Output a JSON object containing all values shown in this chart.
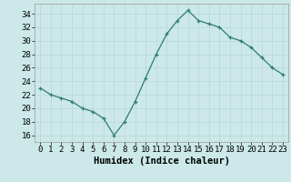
{
  "x": [
    0,
    1,
    2,
    3,
    4,
    5,
    6,
    7,
    8,
    9,
    10,
    11,
    12,
    13,
    14,
    15,
    16,
    17,
    18,
    19,
    20,
    21,
    22,
    23
  ],
  "y": [
    23,
    22,
    21.5,
    21,
    20,
    19.5,
    18.5,
    16,
    18,
    21,
    24.5,
    28,
    31,
    33,
    34.5,
    33,
    32.5,
    32,
    30.5,
    30,
    29,
    27.5,
    26,
    25
  ],
  "line_color": "#2e7d6e",
  "marker_color": "#2e7d6e",
  "bg_color": "#cce8e8",
  "grid_color": "#b8d8d8",
  "xlabel": "Humidex (Indice chaleur)",
  "ylim": [
    15,
    35.5
  ],
  "xlim": [
    -0.5,
    23.5
  ],
  "yticks": [
    16,
    18,
    20,
    22,
    24,
    26,
    28,
    30,
    32,
    34
  ],
  "xticks": [
    0,
    1,
    2,
    3,
    4,
    5,
    6,
    7,
    8,
    9,
    10,
    11,
    12,
    13,
    14,
    15,
    16,
    17,
    18,
    19,
    20,
    21,
    22,
    23
  ],
  "tick_label_fontsize": 6.5,
  "xlabel_fontsize": 7.5
}
